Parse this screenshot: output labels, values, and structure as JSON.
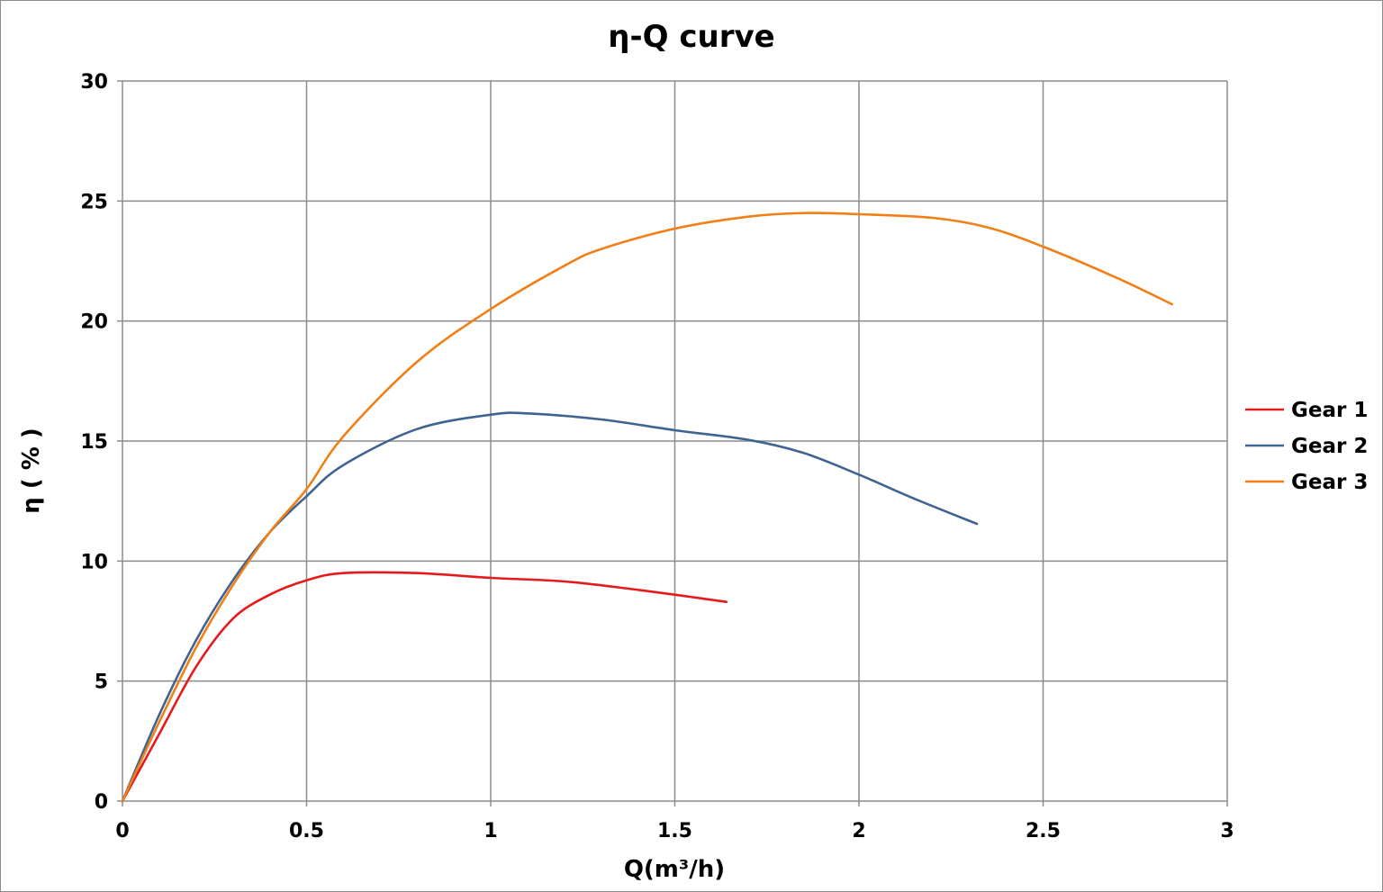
{
  "chart_data": {
    "type": "line",
    "title": "η-Q  curve",
    "xlabel": "Q(m³/h)",
    "ylabel": "η ( % )",
    "xlim": [
      0,
      3
    ],
    "ylim": [
      0,
      30
    ],
    "x_ticks": [
      "0",
      "0.5",
      "1",
      "1.5",
      "2",
      "2.5",
      "3"
    ],
    "y_ticks": [
      "0",
      "5",
      "10",
      "15",
      "20",
      "25",
      "30"
    ],
    "grid": true,
    "legend_position": "right",
    "series": [
      {
        "name": "Gear 1",
        "color": "#e41a1c",
        "points": [
          [
            0,
            0
          ],
          [
            0.1,
            2.8
          ],
          [
            0.2,
            5.6
          ],
          [
            0.3,
            7.6
          ],
          [
            0.4,
            8.6
          ],
          [
            0.5,
            9.2
          ],
          [
            0.6,
            9.5
          ],
          [
            0.8,
            9.5
          ],
          [
            1.0,
            9.3
          ],
          [
            1.2,
            9.15
          ],
          [
            1.4,
            8.8
          ],
          [
            1.64,
            8.3
          ]
        ]
      },
      {
        "name": "Gear 2",
        "color": "#3f6490",
        "points": [
          [
            0,
            0
          ],
          [
            0.1,
            3.6
          ],
          [
            0.2,
            6.7
          ],
          [
            0.3,
            9.2
          ],
          [
            0.4,
            11.2
          ],
          [
            0.5,
            12.7
          ],
          [
            0.6,
            14.0
          ],
          [
            0.8,
            15.5
          ],
          [
            1.0,
            16.1
          ],
          [
            1.1,
            16.15
          ],
          [
            1.3,
            15.9
          ],
          [
            1.5,
            15.45
          ],
          [
            1.7,
            15.05
          ],
          [
            1.85,
            14.5
          ],
          [
            2.0,
            13.6
          ],
          [
            2.15,
            12.6
          ],
          [
            2.32,
            11.55
          ]
        ]
      },
      {
        "name": "Gear 3",
        "color": "#f07f16",
        "points": [
          [
            0,
            0
          ],
          [
            0.1,
            3.3
          ],
          [
            0.2,
            6.4
          ],
          [
            0.3,
            9.0
          ],
          [
            0.4,
            11.2
          ],
          [
            0.5,
            13.0
          ],
          [
            0.6,
            15.2
          ],
          [
            0.8,
            18.3
          ],
          [
            1.0,
            20.5
          ],
          [
            1.2,
            22.3
          ],
          [
            1.3,
            23.0
          ],
          [
            1.5,
            23.85
          ],
          [
            1.7,
            24.35
          ],
          [
            1.85,
            24.5
          ],
          [
            2.0,
            24.45
          ],
          [
            2.2,
            24.3
          ],
          [
            2.35,
            23.9
          ],
          [
            2.5,
            23.1
          ],
          [
            2.7,
            21.8
          ],
          [
            2.85,
            20.7
          ]
        ]
      }
    ]
  }
}
